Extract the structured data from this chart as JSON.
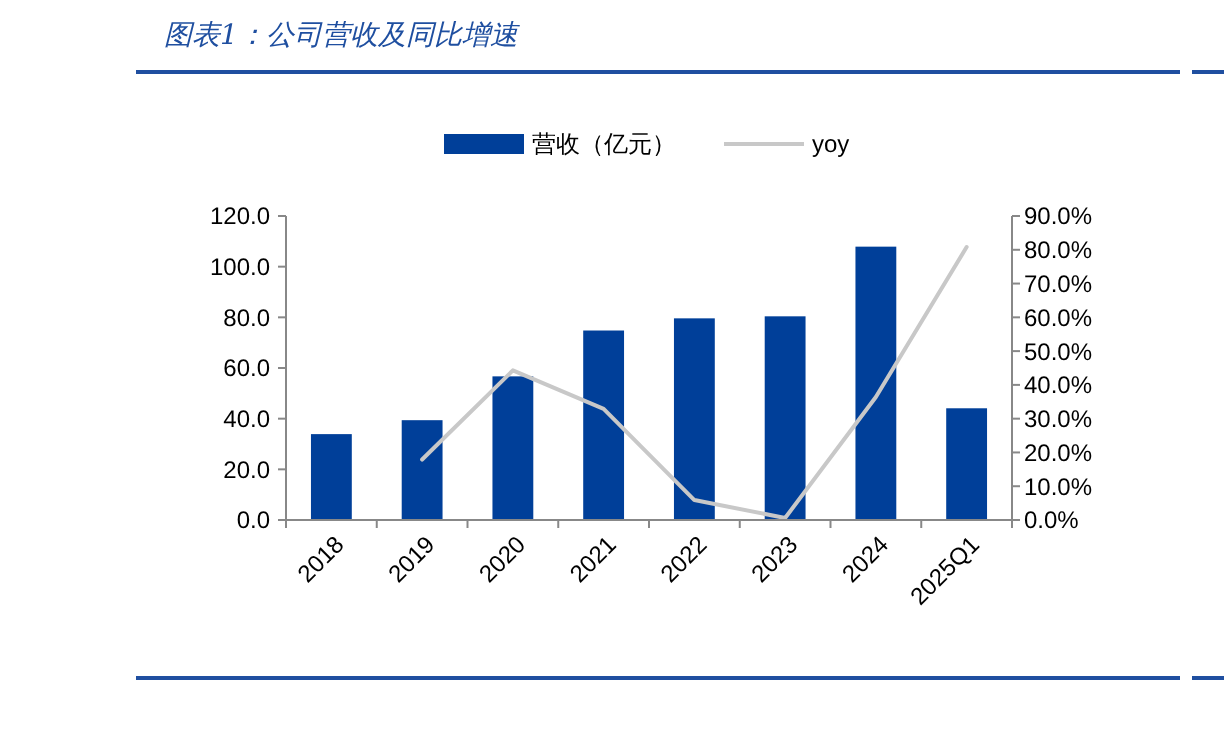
{
  "chart_data": {
    "type": "bar",
    "title": "图表1：公司营收及同比增速",
    "categories": [
      "2018",
      "2019",
      "2020",
      "2021",
      "2022",
      "2023",
      "2024",
      "2025Q1"
    ],
    "series": [
      {
        "name": "营收（亿元）",
        "color": "#003f99",
        "values": [
          33.9,
          39.4,
          56.7,
          74.8,
          79.6,
          80.4,
          107.9,
          44.1
        ]
      },
      {
        "name": "yoy",
        "type": "line",
        "axis": "y2",
        "color": "#c8c8c8",
        "values": [
          null,
          17.9,
          44.3,
          32.9,
          5.9,
          0.6,
          36.4,
          80.8
        ]
      }
    ],
    "ylim": [
      0,
      120
    ],
    "yticks": [
      {
        "value": 0,
        "label": "0.0"
      },
      {
        "value": 20,
        "label": "20.0"
      },
      {
        "value": 40,
        "label": "40.0"
      },
      {
        "value": 60,
        "label": "60.0"
      },
      {
        "value": 80,
        "label": "80.0"
      },
      {
        "value": 100,
        "label": "100.0"
      },
      {
        "value": 120,
        "label": "120.0"
      }
    ],
    "y2lim": [
      0,
      90
    ],
    "y2ticks": [
      {
        "value": 0,
        "label": "0.0%"
      },
      {
        "value": 10,
        "label": "10.0%"
      },
      {
        "value": 20,
        "label": "20.0%"
      },
      {
        "value": 30,
        "label": "30.0%"
      },
      {
        "value": 40,
        "label": "40.0%"
      },
      {
        "value": 50,
        "label": "50.0%"
      },
      {
        "value": 60,
        "label": "60.0%"
      },
      {
        "value": 70,
        "label": "70.0%"
      },
      {
        "value": 80,
        "label": "80.0%"
      },
      {
        "value": 90,
        "label": "90.0%"
      }
    ],
    "legend": "top",
    "grid": false
  }
}
